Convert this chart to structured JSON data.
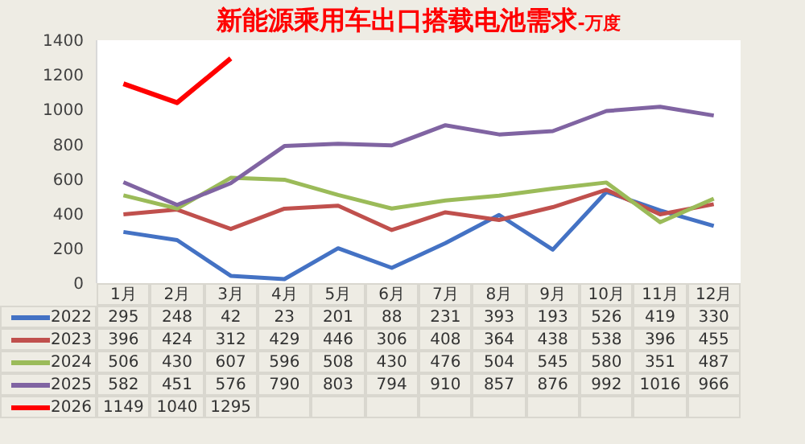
{
  "chart_data": {
    "type": "line",
    "title": "新能源乘用车出口搭载电池需求",
    "subtitle": "-万度",
    "categories": [
      "1月",
      "2月",
      "3月",
      "4月",
      "5月",
      "6月",
      "7月",
      "8月",
      "9月",
      "10月",
      "11月",
      "12月"
    ],
    "series": [
      {
        "name": "2022",
        "color": "#4472c4",
        "values": [
          295,
          248,
          42,
          23,
          201,
          88,
          231,
          393,
          193,
          526,
          419,
          330
        ]
      },
      {
        "name": "2023",
        "color": "#c0504d",
        "values": [
          396,
          424,
          312,
          429,
          446,
          306,
          408,
          364,
          438,
          538,
          396,
          455
        ]
      },
      {
        "name": "2024",
        "color": "#9bbb59",
        "values": [
          506,
          430,
          607,
          596,
          508,
          430,
          476,
          504,
          545,
          580,
          351,
          487
        ]
      },
      {
        "name": "2025",
        "color": "#8064a2",
        "values": [
          582,
          451,
          576,
          790,
          803,
          794,
          910,
          857,
          876,
          992,
          1016,
          966
        ]
      },
      {
        "name": "2026",
        "color": "#ff0000",
        "values": [
          1149,
          1040,
          1295,
          null,
          null,
          null,
          null,
          null,
          null,
          null,
          null,
          null
        ]
      }
    ],
    "ylim": [
      0,
      1400
    ],
    "yticks": [
      0,
      200,
      400,
      600,
      800,
      1000,
      1200,
      1400
    ],
    "grid": false,
    "legend": "bottom",
    "data_labels": true,
    "marker": "none",
    "line_style": "solid"
  }
}
